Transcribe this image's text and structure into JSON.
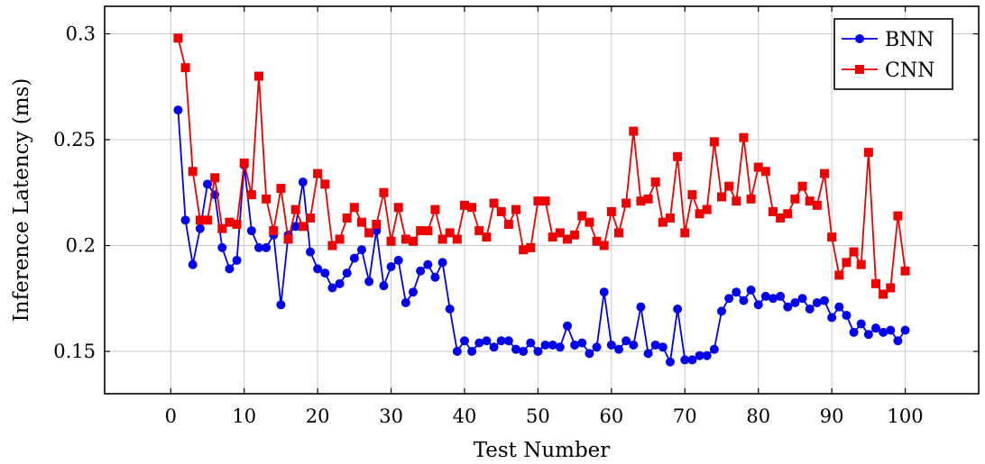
{
  "chart_data": {
    "type": "line",
    "xlabel": "Test Number",
    "ylabel": "Inference Latency (ms)",
    "xlim": [
      -9,
      110
    ],
    "ylim": [
      0.13,
      0.313
    ],
    "xticks": [
      0,
      10,
      20,
      30,
      40,
      50,
      60,
      70,
      80,
      90,
      100
    ],
    "yticks": [
      0.15,
      0.2,
      0.25,
      0.3
    ],
    "xtick_labels": [
      "0",
      "10",
      "20",
      "30",
      "40",
      "50",
      "60",
      "70",
      "80",
      "90",
      "100"
    ],
    "ytick_labels": [
      "0.15",
      "0.2",
      "0.25",
      "0.3"
    ],
    "grid": true,
    "legend_position": "top-right",
    "x": [
      1,
      2,
      3,
      4,
      5,
      6,
      7,
      8,
      9,
      10,
      11,
      12,
      13,
      14,
      15,
      16,
      17,
      18,
      19,
      20,
      21,
      22,
      23,
      24,
      25,
      26,
      27,
      28,
      29,
      30,
      31,
      32,
      33,
      34,
      35,
      36,
      37,
      38,
      39,
      40,
      41,
      42,
      43,
      44,
      45,
      46,
      47,
      48,
      49,
      50,
      51,
      52,
      53,
      54,
      55,
      56,
      57,
      58,
      59,
      60,
      61,
      62,
      63,
      64,
      65,
      66,
      67,
      68,
      69,
      70,
      71,
      72,
      73,
      74,
      75,
      76,
      77,
      78,
      79,
      80,
      81,
      82,
      83,
      84,
      85,
      86,
      87,
      88,
      89,
      90,
      91,
      92,
      93,
      94,
      95,
      96,
      97,
      98,
      99,
      100
    ],
    "series": [
      {
        "name": "BNN",
        "color": "#0000ee",
        "marker": "circle",
        "values": [
          0.264,
          0.212,
          0.191,
          0.208,
          0.229,
          0.224,
          0.199,
          0.189,
          0.193,
          0.238,
          0.207,
          0.199,
          0.199,
          0.205,
          0.172,
          0.205,
          0.209,
          0.23,
          0.197,
          0.189,
          0.187,
          0.18,
          0.182,
          0.187,
          0.194,
          0.198,
          0.183,
          0.207,
          0.181,
          0.19,
          0.193,
          0.173,
          0.178,
          0.188,
          0.191,
          0.185,
          0.192,
          0.17,
          0.15,
          0.155,
          0.15,
          0.154,
          0.155,
          0.152,
          0.155,
          0.155,
          0.151,
          0.15,
          0.154,
          0.15,
          0.153,
          0.153,
          0.152,
          0.162,
          0.153,
          0.154,
          0.149,
          0.152,
          0.178,
          0.153,
          0.151,
          0.155,
          0.153,
          0.171,
          0.149,
          0.153,
          0.152,
          0.145,
          0.17,
          0.146,
          0.146,
          0.148,
          0.148,
          0.151,
          0.169,
          0.175,
          0.178,
          0.174,
          0.179,
          0.172,
          0.176,
          0.175,
          0.176,
          0.171,
          0.173,
          0.175,
          0.17,
          0.173,
          0.174,
          0.166,
          0.171,
          0.167,
          0.159,
          0.163,
          0.158,
          0.161,
          0.159,
          0.16,
          0.155,
          0.16
        ]
      },
      {
        "name": "CNN",
        "color": "#ee0000",
        "marker": "square",
        "values": [
          0.298,
          0.284,
          0.235,
          0.212,
          0.212,
          0.232,
          0.208,
          0.211,
          0.21,
          0.239,
          0.224,
          0.28,
          0.222,
          0.207,
          0.227,
          0.203,
          0.217,
          0.209,
          0.213,
          0.234,
          0.229,
          0.2,
          0.203,
          0.213,
          0.218,
          0.211,
          0.206,
          0.21,
          0.225,
          0.202,
          0.218,
          0.203,
          0.202,
          0.207,
          0.207,
          0.217,
          0.203,
          0.206,
          0.203,
          0.219,
          0.218,
          0.207,
          0.204,
          0.22,
          0.216,
          0.21,
          0.217,
          0.198,
          0.199,
          0.221,
          0.221,
          0.204,
          0.206,
          0.203,
          0.205,
          0.214,
          0.211,
          0.202,
          0.2,
          0.216,
          0.206,
          0.22,
          0.254,
          0.221,
          0.222,
          0.23,
          0.211,
          0.213,
          0.242,
          0.206,
          0.224,
          0.215,
          0.217,
          0.249,
          0.223,
          0.228,
          0.221,
          0.251,
          0.222,
          0.237,
          0.235,
          0.216,
          0.213,
          0.215,
          0.222,
          0.228,
          0.221,
          0.219,
          0.234,
          0.204,
          0.186,
          0.192,
          0.197,
          0.191,
          0.244,
          0.182,
          0.177,
          0.18,
          0.214,
          0.188
        ]
      }
    ]
  }
}
